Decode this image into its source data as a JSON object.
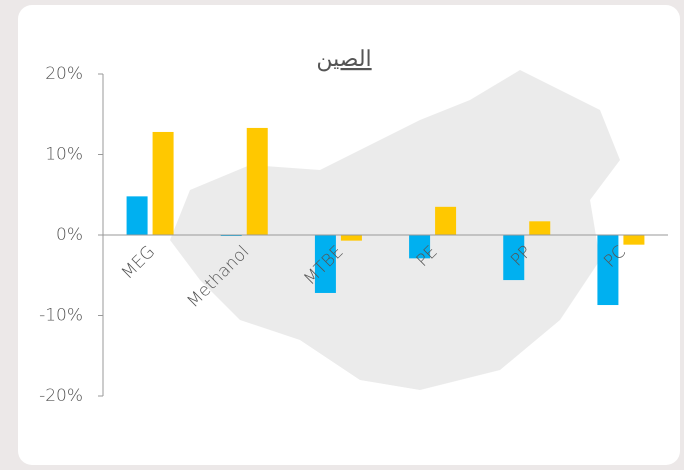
{
  "chart_data": {
    "type": "bar",
    "title": "الصين",
    "categories": [
      "MEG",
      "Methanol",
      "MTBE",
      "PE",
      "PP",
      "PC"
    ],
    "series": [
      {
        "color": "#00b0f0",
        "values": [
          4.8,
          -0.1,
          -7.2,
          -2.9,
          -5.6,
          -8.7
        ]
      },
      {
        "color": "#ffc800",
        "values": [
          12.8,
          13.3,
          -0.7,
          3.5,
          1.7,
          -1.2
        ]
      }
    ],
    "ylim": [
      -20,
      20
    ],
    "yticks": [
      {
        "value": -20,
        "label": "-20%"
      },
      {
        "value": -10,
        "label": "-10%"
      },
      {
        "value": 0,
        "label": "0%"
      },
      {
        "value": 10,
        "label": "10%"
      },
      {
        "value": 20,
        "label": "20%"
      }
    ]
  }
}
